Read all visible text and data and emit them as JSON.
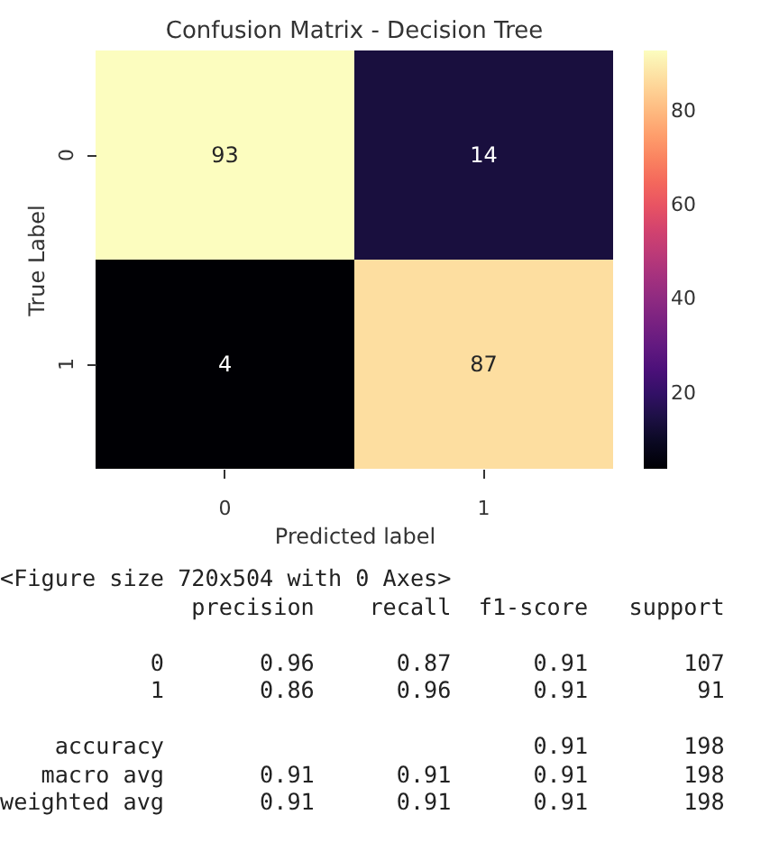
{
  "chart_data": {
    "type": "heatmap",
    "title": "Confusion Matrix - Decision Tree",
    "xlabel": "Predicted label",
    "ylabel": "True Label",
    "categories": [
      "0",
      "1"
    ],
    "y_categories": [
      "0",
      "1"
    ],
    "cells": [
      [
        93,
        14
      ],
      [
        4,
        87
      ]
    ],
    "data_labels": true,
    "clim": [
      4,
      93
    ],
    "cticks": [
      20,
      40,
      60,
      80
    ],
    "annotations": [
      "<Figure size 720x504 with 0 Axes>",
      "              precision    recall  f1-score   support\n\n           0       0.96      0.87      0.91       107\n           1       0.86      0.96      0.91        91\n\n    accuracy                           0.91       198\n   macro avg       0.91      0.91      0.91       198\nweighted avg       0.91      0.91      0.91       198"
    ]
  }
}
